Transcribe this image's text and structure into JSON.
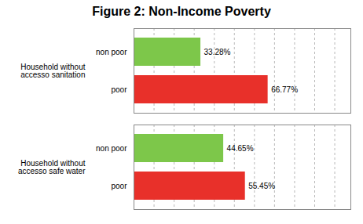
{
  "chart_data": {
    "type": "bar",
    "orientation": "horizontal",
    "title": "Figure 2: Non-Income Poverty",
    "groups": [
      {
        "name": "Household without\naccesso sanitation",
        "categories": [
          "non poor",
          "poor"
        ],
        "values": [
          33.28,
          66.77
        ],
        "value_labels": [
          "33.28%",
          "66.77%"
        ],
        "colors": [
          "#7dc74a",
          "#e8302a"
        ]
      },
      {
        "name": "Household without\naccesso safe water",
        "categories": [
          "non poor",
          "poor"
        ],
        "values": [
          44.65,
          55.45
        ],
        "value_labels": [
          "44.65%",
          "55.45%"
        ],
        "colors": [
          "#7dc74a",
          "#e8302a"
        ]
      }
    ],
    "xlim": [
      0,
      108
    ],
    "xticks": [
      10,
      20,
      30,
      40,
      50,
      60,
      70,
      80,
      90,
      100
    ],
    "grid": true,
    "tick_labels": "y",
    "data_labels": true
  }
}
